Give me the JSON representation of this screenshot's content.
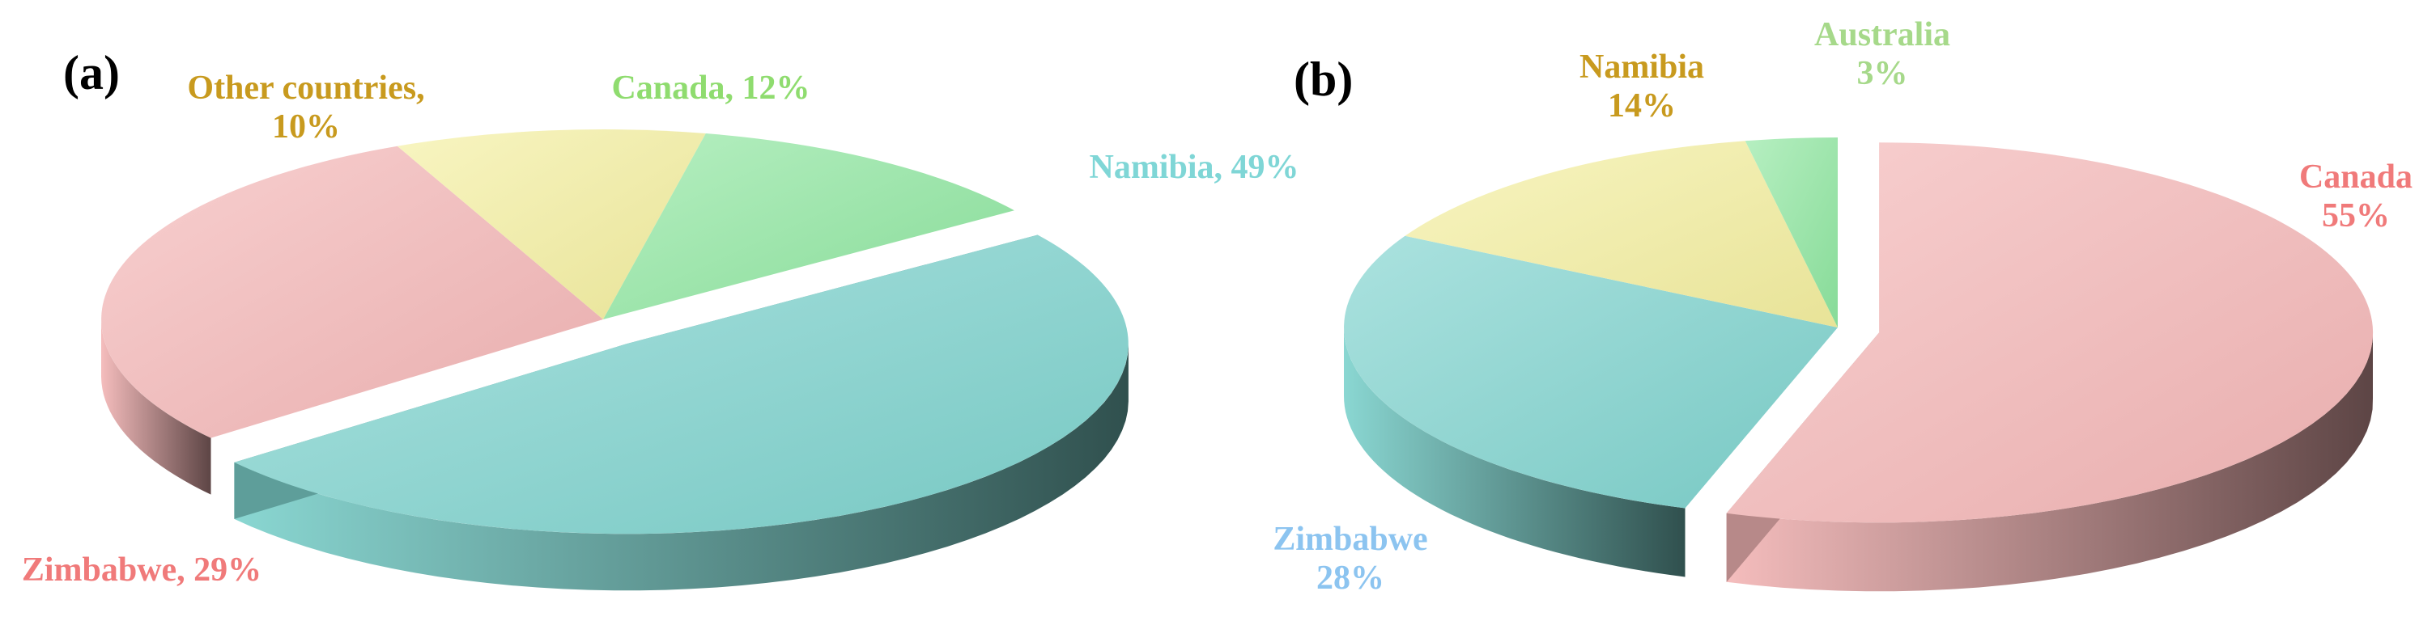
{
  "chart_data": [
    {
      "type": "pie",
      "panel_label": "(a)",
      "slices": [
        {
          "name": "Namibia",
          "value": 49,
          "label_lines": [
            "Namibia, 49%"
          ],
          "color": "#7dd3cd",
          "exploded": true
        },
        {
          "name": "Zimbabwe",
          "value": 29,
          "label_lines": [
            "Zimbabwe, 29%"
          ],
          "color": "#f4b6b6",
          "exploded": false
        },
        {
          "name": "Other countries",
          "value": 10,
          "label_lines": [
            "Other countries,",
            "10%"
          ],
          "color": "#f4efa0",
          "exploded": false
        },
        {
          "name": "Canada",
          "value": 12,
          "label_lines": [
            "Canada, 12%"
          ],
          "color": "#8ee6a0",
          "exploded": false
        }
      ],
      "label_colors": {
        "Namibia": "#7fd6d6",
        "Zimbabwe": "#f07a7a",
        "Other countries": "#c89a1e",
        "Canada": "#8fdc6f"
      }
    },
    {
      "type": "pie",
      "panel_label": "(b)",
      "slices": [
        {
          "name": "Canada",
          "value": 55,
          "label_lines": [
            "Canada",
            "55%"
          ],
          "color": "#f4b6b6",
          "exploded": true
        },
        {
          "name": "Zimbabwe",
          "value": 28,
          "label_lines": [
            "Zimbabwe",
            "28%"
          ],
          "color": "#7dd3cd",
          "exploded": false
        },
        {
          "name": "Namibia",
          "value": 14,
          "label_lines": [
            "Namibia",
            "14%"
          ],
          "color": "#f4efa0",
          "exploded": false
        },
        {
          "name": "Australia",
          "value": 3,
          "label_lines": [
            "Australia",
            "3%"
          ],
          "color": "#8ee6a0",
          "exploded": false
        }
      ],
      "label_colors": {
        "Canada": "#f07a7a",
        "Zimbabwe": "#8cc4f0",
        "Namibia": "#c89a1e",
        "Australia": "#a6d98a"
      }
    }
  ]
}
